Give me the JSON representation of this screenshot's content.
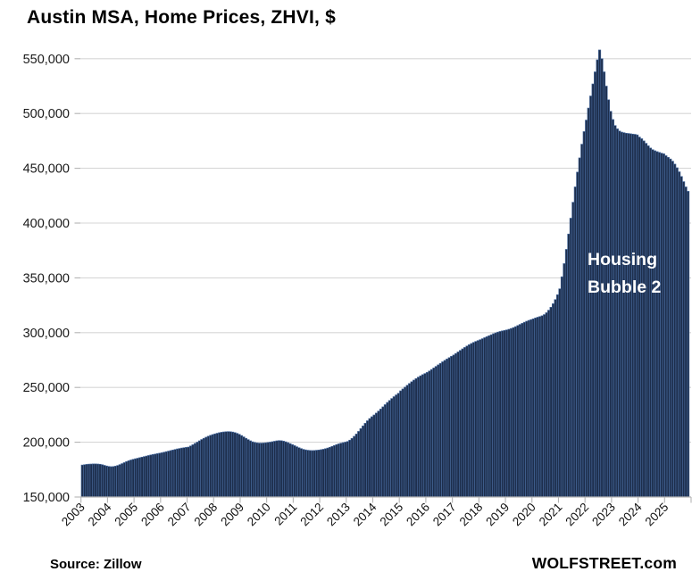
{
  "title": "Austin MSA, Home Prices, ZHVI, $",
  "annotation": {
    "line1": "Housing",
    "line2": "Bubble 2"
  },
  "footer": {
    "source": "Source: Zillow",
    "site": "WOLFSTREET.com"
  },
  "colors": {
    "bar_fill": "#1d2e4c",
    "bar_edge": "#47699c",
    "gridline": "#d6d6d6",
    "axis": "#b3b3b3",
    "tick": "#b3b3b3",
    "label_text": "#1a1a1a",
    "annotation_text": "#ffffff"
  },
  "chart_data": {
    "type": "bar",
    "title": "Austin MSA, Home Prices, ZHVI, $",
    "unit": "$",
    "frequency": "monthly",
    "x_start": "2003-01",
    "x_end": "2025-11",
    "x_tick_labels": [
      "2003",
      "2004",
      "2005",
      "2006",
      "2007",
      "2008",
      "2009",
      "2010",
      "2011",
      "2012",
      "2013",
      "2014",
      "2015",
      "2016",
      "2017",
      "2018",
      "2019",
      "2020",
      "2021",
      "2022",
      "2023",
      "2024",
      "2025"
    ],
    "y_ticks": [
      150000,
      200000,
      250000,
      300000,
      350000,
      400000,
      450000,
      500000,
      550000
    ],
    "ylim": [
      150000,
      569000
    ],
    "grid": "horizontal",
    "legend": "none",
    "annotation": "Housing Bubble 2",
    "source": "Zillow",
    "values": [
      179200,
      179500,
      179800,
      180000,
      180100,
      180200,
      180200,
      180100,
      179900,
      179500,
      178900,
      178300,
      177900,
      177700,
      177800,
      178200,
      178800,
      179600,
      180500,
      181400,
      182300,
      183100,
      183800,
      184400,
      184900,
      185400,
      185900,
      186400,
      186900,
      187400,
      187900,
      188400,
      188800,
      189200,
      189600,
      190000,
      190400,
      190900,
      191400,
      191900,
      192400,
      192900,
      193400,
      193900,
      194300,
      194700,
      195000,
      195300,
      195600,
      196600,
      197700,
      198900,
      200100,
      201300,
      202500,
      203600,
      204600,
      205500,
      206300,
      207000,
      207600,
      208200,
      208700,
      209100,
      209400,
      209600,
      209700,
      209600,
      209300,
      208800,
      208100,
      207200,
      206100,
      204900,
      203600,
      202400,
      201300,
      200400,
      199800,
      199400,
      199200,
      199200,
      199300,
      199500,
      199800,
      200100,
      200500,
      200900,
      201300,
      201500,
      201400,
      201000,
      200400,
      199600,
      198700,
      197800,
      196900,
      195900,
      195000,
      194200,
      193500,
      193000,
      192700,
      192500,
      192400,
      192500,
      192700,
      192900,
      193200,
      193600,
      194100,
      194700,
      195400,
      196200,
      197000,
      197800,
      198500,
      199100,
      199600,
      200100,
      200700,
      201900,
      203500,
      205400,
      207500,
      209900,
      212400,
      214900,
      217300,
      219600,
      221600,
      223300,
      224900,
      226600,
      228400,
      230300,
      232300,
      234300,
      236300,
      238100,
      239900,
      241600,
      243200,
      244700,
      246900,
      248600,
      250300,
      252000,
      253600,
      255200,
      256700,
      258100,
      259400,
      260600,
      261700,
      262700,
      263700,
      265000,
      266400,
      267800,
      269200,
      270600,
      272000,
      273400,
      274700,
      276000,
      277200,
      278400,
      279600,
      281000,
      282400,
      283800,
      285200,
      286500,
      287800,
      289000,
      290100,
      291100,
      292000,
      292800,
      293600,
      294500,
      295400,
      296300,
      297200,
      298100,
      299000,
      299800,
      300500,
      301100,
      301600,
      302000,
      302500,
      303100,
      303800,
      304600,
      305500,
      306500,
      307500,
      308500,
      309500,
      310400,
      311200,
      311900,
      312600,
      313400,
      314100,
      314700,
      315400,
      316500,
      318200,
      320500,
      323200,
      326400,
      330200,
      334600,
      340000,
      351000,
      363000,
      376000,
      390000,
      404500,
      419000,
      433000,
      446500,
      459500,
      472000,
      483500,
      494000,
      505000,
      516000,
      527000,
      538000,
      549000,
      558000,
      550000,
      538000,
      525000,
      512500,
      502000,
      494500,
      489000,
      486000,
      484000,
      483000,
      482500,
      482000,
      481800,
      481500,
      481200,
      481000,
      480500,
      478500,
      477000,
      475000,
      472800,
      470500,
      468500,
      467000,
      466000,
      465200,
      464500,
      463800,
      463200,
      461500,
      460000,
      458500,
      456500,
      453800,
      450500,
      446800,
      442500,
      437800,
      433000,
      429000
    ]
  }
}
